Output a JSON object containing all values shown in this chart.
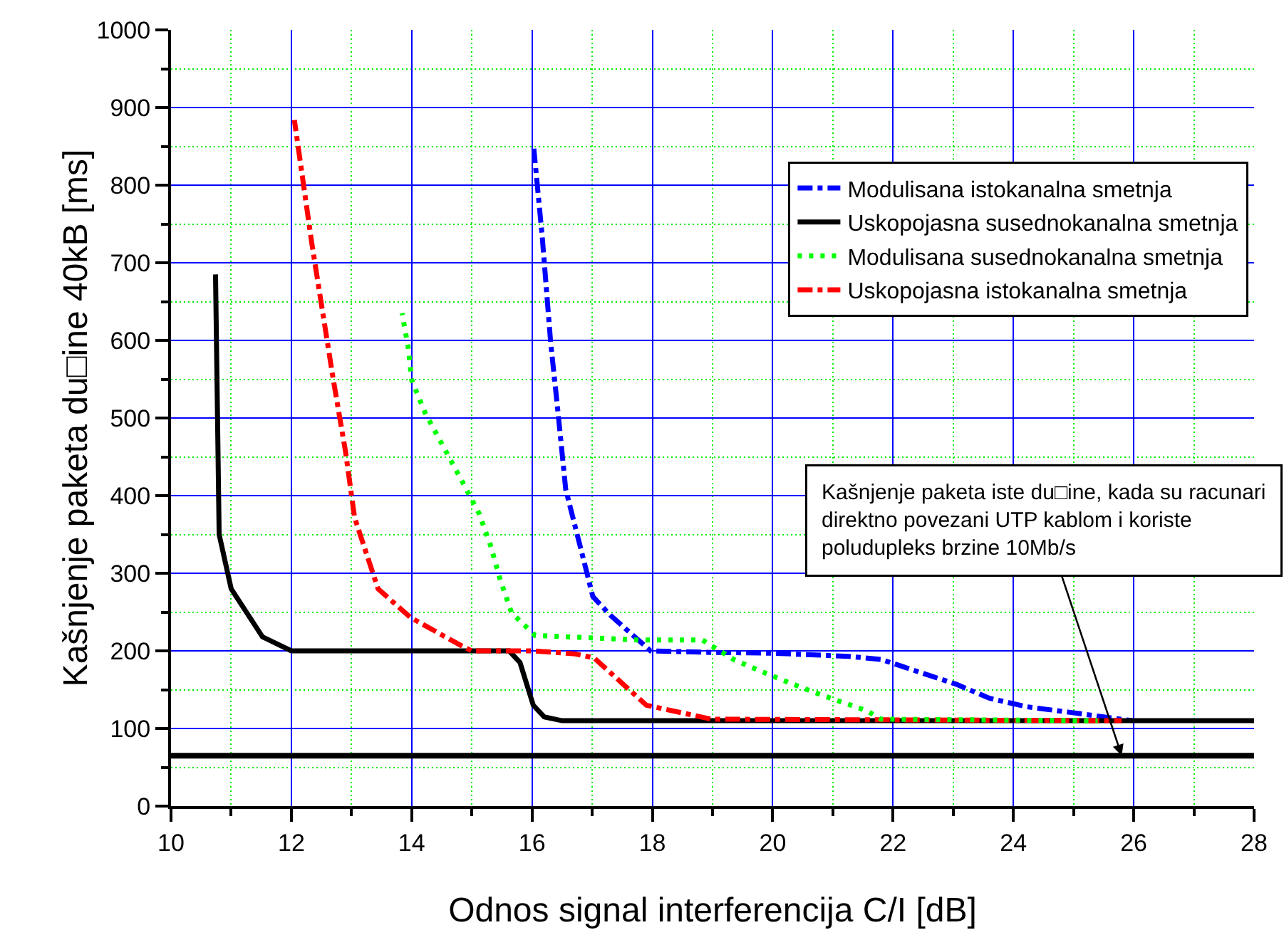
{
  "chart_data": {
    "type": "line",
    "xlabel": "Odnos signal interferencija C/I [dB]",
    "ylabel": "Kašnjenje paketa du□ine 40kB [ms]",
    "xlim": [
      10,
      28
    ],
    "xticks": [
      10,
      {
        "value": 11,
        "label": null
      },
      12,
      {
        "value": 13,
        "label": null
      },
      14,
      {
        "value": 15,
        "label": null
      },
      16,
      {
        "value": 17,
        "label": null
      },
      18,
      {
        "value": 19,
        "label": null
      },
      20,
      {
        "value": 21,
        "label": null
      },
      22,
      {
        "value": 23,
        "label": null
      },
      24,
      {
        "value": 25,
        "label": null
      },
      26,
      {
        "value": 27,
        "label": null
      },
      28
    ],
    "ylim": [
      0,
      1000
    ],
    "yticks": [
      0,
      {
        "value": 50,
        "label": null
      },
      100,
      {
        "value": 150,
        "label": null
      },
      200,
      {
        "value": 250,
        "label": null
      },
      300,
      {
        "value": 350,
        "label": null
      },
      400,
      {
        "value": 450,
        "label": null
      },
      500,
      {
        "value": 550,
        "label": null
      },
      600,
      {
        "value": 650,
        "label": null
      },
      700,
      {
        "value": 750,
        "label": null
      },
      800,
      {
        "value": 850,
        "label": null
      },
      900,
      {
        "value": 950,
        "label": null
      },
      1000
    ],
    "grid": true,
    "legend": "top right",
    "marker": "none",
    "series": [
      {
        "name": "Modulisana istokanalna smetnja",
        "color": "#0000ff",
        "line_style": "dashed",
        "x": [
          16.03,
          16.17,
          16.31,
          16.42,
          16.56,
          16.76,
          16.91,
          17.01,
          17.3,
          17.97,
          19.0,
          20.0,
          21.25,
          21.8,
          22.5,
          23.05,
          23.6,
          24.22,
          24.92,
          25.78,
          26.0
        ],
        "values": [
          847,
          733,
          597,
          516,
          408,
          347,
          301,
          270,
          246,
          200,
          198,
          197,
          193,
          189,
          171,
          157,
          139,
          128,
          121,
          112,
          110
        ]
      },
      {
        "name": "Uskopojasna susednokanalna smetnja",
        "color": "#000000",
        "line_style": "solid",
        "x": [
          10.74,
          10.8,
          11.0,
          11.52,
          12.0,
          15.62,
          15.8,
          16.02,
          16.2,
          16.5,
          28.0
        ],
        "values": [
          685,
          350,
          280,
          218,
          200,
          200,
          185,
          130,
          115,
          110,
          110
        ]
      },
      {
        "name": "Modulisana susednokanalna smetnja",
        "color": "#00ff00",
        "line_style": "dotted",
        "x": [
          13.84,
          13.94,
          14.0,
          14.22,
          14.52,
          14.82,
          15.12,
          15.31,
          15.47,
          15.66,
          16.05,
          16.63,
          17.74,
          18.83,
          19.37,
          19.92,
          20.47,
          21.0,
          21.56,
          21.8,
          25.4
        ],
        "values": [
          635,
          592,
          549,
          507,
          464,
          421,
          377,
          336,
          292,
          249,
          220,
          218,
          214,
          214,
          188,
          170,
          153,
          138,
          123,
          112,
          110
        ]
      },
      {
        "name": "Uskopojasna istokanalna smetnja",
        "color": "#ff0000",
        "line_style": "dashed",
        "x": [
          12.05,
          12.34,
          12.7,
          12.9,
          13.05,
          13.44,
          13.98,
          14.84,
          15.0,
          15.6,
          16.02,
          16.72,
          17.03,
          17.9,
          18.98,
          25.8
        ],
        "values": [
          884,
          725,
          548,
          457,
          372,
          280,
          243,
          206,
          200,
          200,
          200,
          196,
          191,
          130,
          112,
          110
        ]
      }
    ],
    "ref_lines": [
      {
        "axis": "y",
        "value": 65,
        "color": "#000000"
      }
    ],
    "annotations": [
      {
        "text": "Kašnjenje paketa iste du□ine, kada su racunari\ndirektno povezani UTP kablom i koriste\npoludupleks brzine 10Mb/s",
        "x": 25.8,
        "y": 65
      }
    ]
  }
}
